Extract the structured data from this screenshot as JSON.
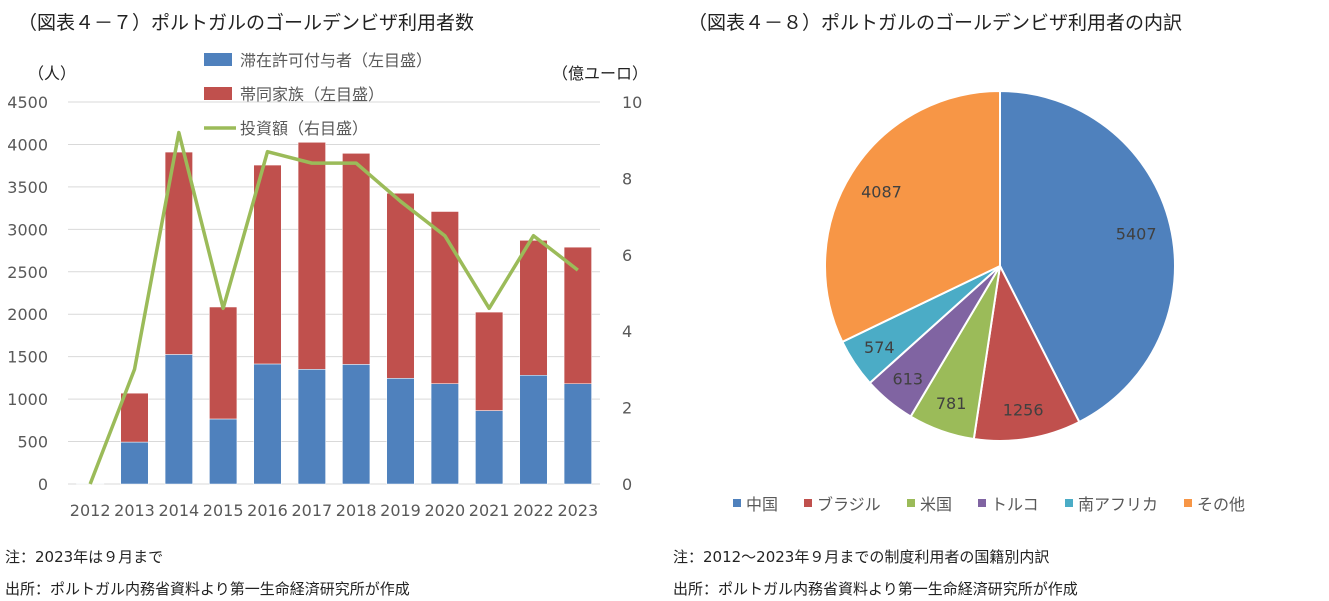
{
  "chart_data": [
    {
      "type": "bar",
      "title": "（図表４－７）ポルトガルのゴールデンビザ利用者数",
      "ylabel": "（人）",
      "y2label": "（億ユーロ）",
      "ylim": [
        0,
        4500
      ],
      "y2lim": [
        0,
        10
      ],
      "yticks": [
        "0",
        "500",
        "1000",
        "1500",
        "2000",
        "2500",
        "3000",
        "3500",
        "4000",
        "4500"
      ],
      "y2ticks": [
        "0",
        "2",
        "4",
        "6",
        "8",
        "10"
      ],
      "categories": [
        "2012",
        "2013",
        "2014",
        "2015",
        "2016",
        "2017",
        "2018",
        "2019",
        "2020",
        "2021",
        "2022",
        "2023"
      ],
      "series": [
        {
          "name": "滞在許可付与者（左目盛）",
          "kind": "bar",
          "color": "#4f81bd",
          "values": [
            2,
            494,
            1526,
            766,
            1414,
            1351,
            1409,
            1245,
            1182,
            865,
            1281,
            1181
          ]
        },
        {
          "name": "帯同家族（左目盛）",
          "kind": "bar",
          "color": "#c0504d",
          "values": [
            0,
            576,
            2384,
            1319,
            2343,
            2674,
            2486,
            2180,
            2028,
            1160,
            1589,
            1609
          ]
        },
        {
          "name": "投資額（右目盛）",
          "kind": "line",
          "color": "#9bbb59",
          "values": [
            0,
            3.0,
            9.2,
            4.6,
            8.7,
            8.4,
            8.4,
            7.4,
            6.5,
            4.6,
            6.5,
            5.6
          ]
        }
      ],
      "grid": true,
      "legend": "top"
    },
    {
      "type": "pie",
      "title": "（図表４－８）ポルトガルのゴールデンビザ利用者の内訳",
      "labels": [
        "中国",
        "ブラジル",
        "米国",
        "トルコ",
        "南アフリカ",
        "その他"
      ],
      "values": [
        5407,
        1256,
        781,
        613,
        574,
        4087
      ],
      "colors": [
        "#4f81bd",
        "#c0504d",
        "#9bbb59",
        "#8064a2",
        "#4bacc6",
        "#f79646"
      ],
      "legend": "bottom"
    }
  ],
  "notes": {
    "left_note": "注：2023年は９月まで",
    "left_source": "出所：ポルトガル内務省資料より第一生命経済研究所が作成",
    "right_note": "注：2012～2023年９月までの制度利用者の国籍別内訳",
    "right_source": "出所：ポルトガル内務省資料より第一生命経済研究所が作成"
  }
}
